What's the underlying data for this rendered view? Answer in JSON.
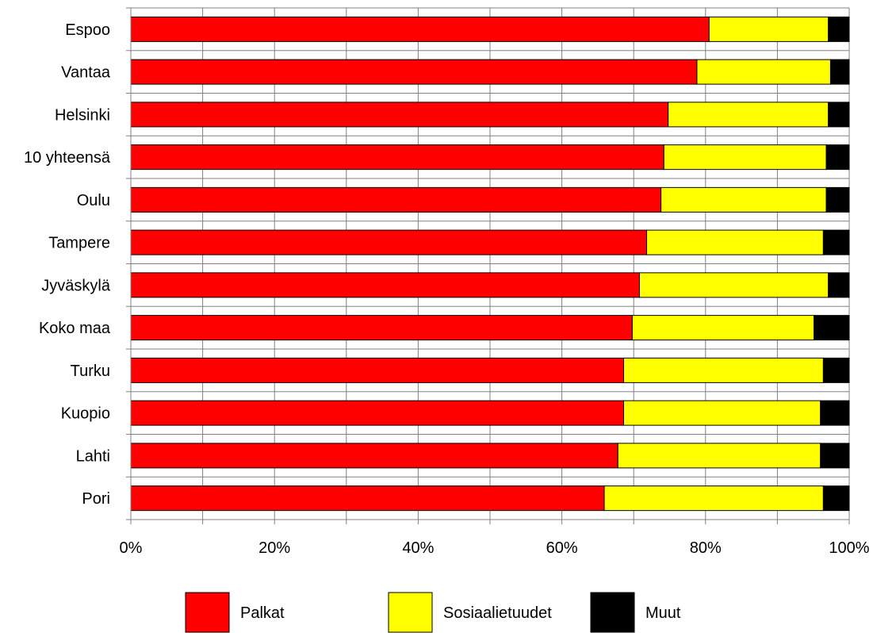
{
  "chart_data": {
    "type": "bar",
    "orientation": "horizontal",
    "stacked": true,
    "normalized_percent": true,
    "categories": [
      "Espoo",
      "Vantaa",
      "Helsinki",
      "10 yhteensä",
      "Oulu",
      "Tampere",
      "Jyväskylä",
      "Koko maa",
      "Turku",
      "Kuopio",
      "Lahti",
      "Pori"
    ],
    "series": [
      {
        "name": "Palkat",
        "color": "#ff0000",
        "values": [
          80.5,
          78.8,
          74.8,
          74.2,
          73.8,
          71.8,
          70.8,
          69.8,
          68.6,
          68.6,
          67.8,
          65.9
        ]
      },
      {
        "name": "Sosiaalietuudet",
        "color": "#ffff00",
        "values": [
          16.6,
          18.6,
          22.3,
          22.6,
          23.0,
          24.6,
          26.3,
          25.3,
          27.8,
          27.4,
          28.2,
          30.5
        ]
      },
      {
        "name": "Muut",
        "color": "#000000",
        "values": [
          2.9,
          2.6,
          2.9,
          3.2,
          3.2,
          3.6,
          2.9,
          4.9,
          3.6,
          4.0,
          4.0,
          3.6
        ]
      }
    ],
    "x_tick_labels": [
      "0%",
      "20%",
      "40%",
      "60%",
      "80%",
      "100%"
    ],
    "xlim": [
      0,
      100
    ],
    "grid": true,
    "legend_position": "bottom"
  }
}
